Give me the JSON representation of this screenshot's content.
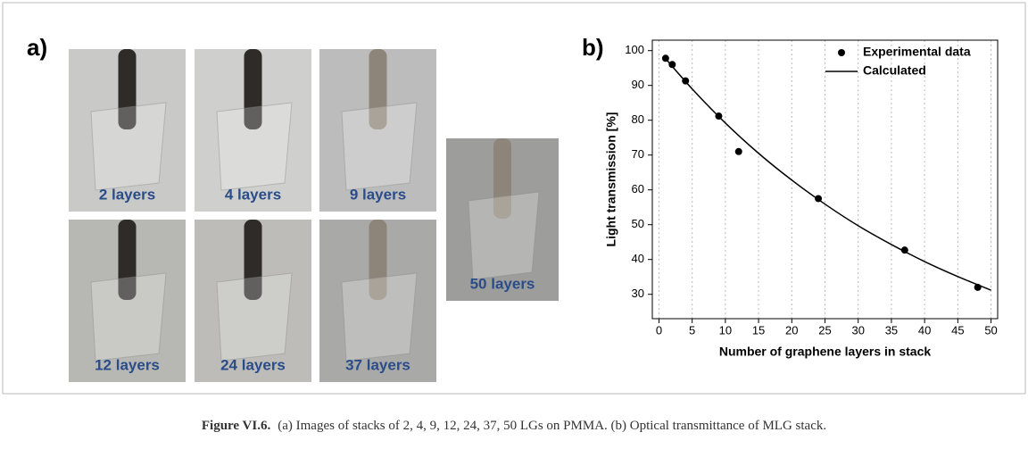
{
  "panel_a": {
    "label": "a)",
    "images": [
      "2 layers",
      "4 layers",
      "9 layers",
      "12 layers",
      "24 layers",
      "37 layers",
      "50 layers"
    ]
  },
  "chart_data": {
    "type": "scatter",
    "label": "b)",
    "x_label": "Number of graphene layers in stack",
    "y_label": "Light transmission [%]",
    "xlim": [
      -1,
      51
    ],
    "ylim": [
      23,
      103
    ],
    "xticks": [
      0,
      5,
      10,
      15,
      20,
      25,
      30,
      35,
      40,
      45,
      50
    ],
    "yticks": [
      30,
      40,
      50,
      60,
      70,
      80,
      90,
      100
    ],
    "grid": true,
    "legend": "top-right",
    "series": [
      {
        "name": "Experimental data",
        "color": "#000000",
        "style": "markers",
        "x": [
          1,
          2,
          4,
          9,
          12,
          24,
          37,
          48
        ],
        "values": [
          97.8,
          96,
          91.3,
          81.2,
          71,
          57.5,
          42.7,
          32
        ]
      },
      {
        "name": "Calculated",
        "color": "#000000",
        "style": "line",
        "x": [
          1,
          5,
          10,
          15,
          20,
          25,
          30,
          35,
          40,
          45,
          50
        ],
        "values": [
          97.7,
          89.0,
          79.2,
          70.5,
          62.8,
          55.9,
          49.7,
          44.3,
          39.4,
          35.1,
          31.2
        ]
      }
    ]
  },
  "caption": {
    "label": "Figure VI.6.",
    "text": "(a) Images of stacks of 2, 4, 9, 12, 24, 37, 50 LGs on PMMA. (b) Optical transmittance of MLG stack."
  }
}
